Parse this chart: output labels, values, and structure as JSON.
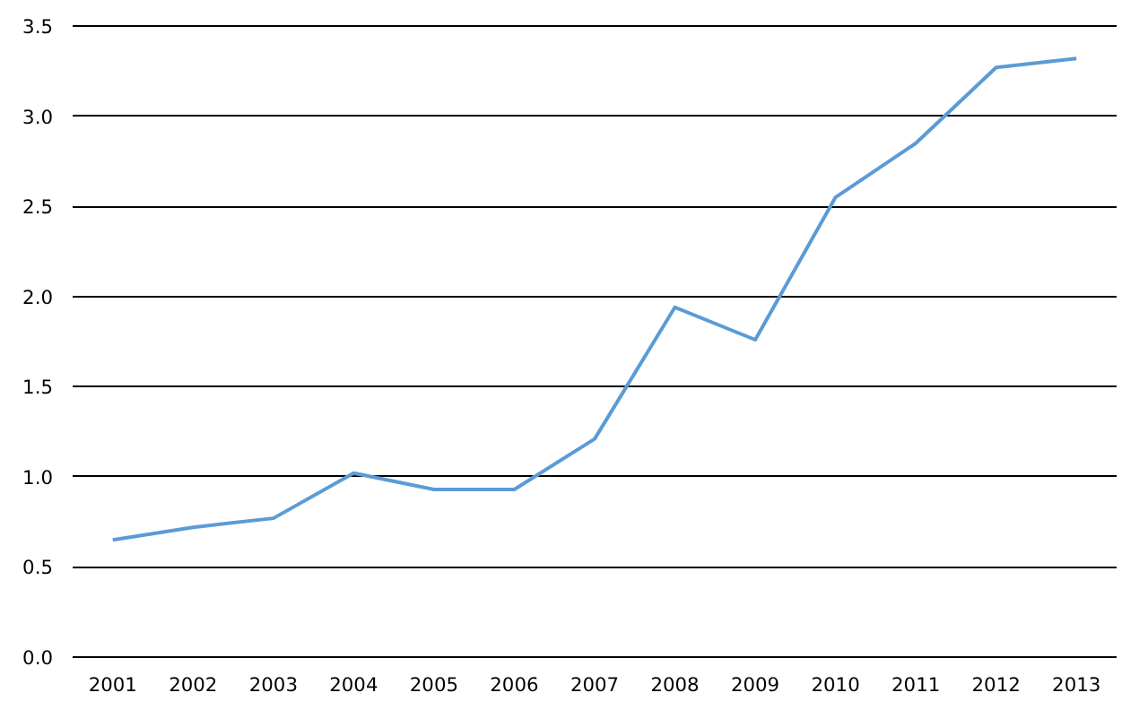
{
  "chart_data": {
    "type": "line",
    "categories": [
      "2001",
      "2002",
      "2003",
      "2004",
      "2005",
      "2006",
      "2007",
      "2008",
      "2009",
      "2010",
      "2011",
      "2012",
      "2013"
    ],
    "series": [
      {
        "color": "#5b9bd5",
        "values": [
          0.65,
          0.72,
          0.77,
          1.02,
          0.93,
          0.93,
          1.21,
          1.94,
          1.76,
          2.55,
          2.85,
          3.27,
          3.32
        ]
      }
    ],
    "ylim": [
      0,
      3.5
    ],
    "yticks": [
      {
        "value": 0,
        "label": "0.0"
      },
      {
        "value": 0.5,
        "label": "0.5"
      },
      {
        "value": 1,
        "label": "1.0"
      },
      {
        "value": 1.5,
        "label": "1.5"
      },
      {
        "value": 2,
        "label": "2.0"
      },
      {
        "value": 2.5,
        "label": "2.5"
      },
      {
        "value": 3,
        "label": "3.0"
      },
      {
        "value": 3.5,
        "label": "3.5"
      }
    ],
    "grid": "y",
    "marker": "none",
    "line_style": "solid"
  }
}
